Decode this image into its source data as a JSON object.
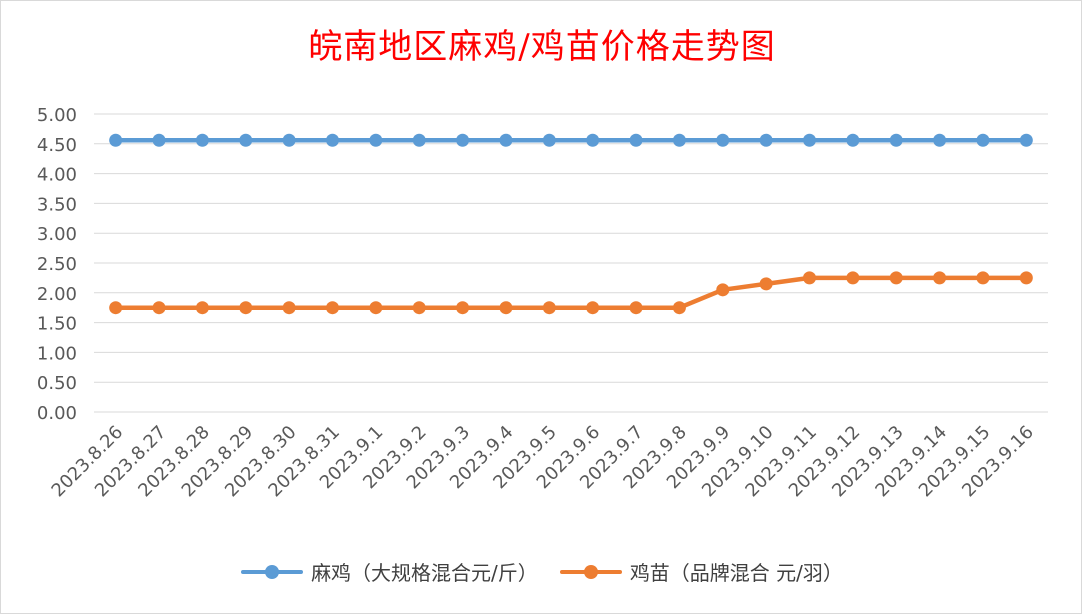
{
  "chart_data": {
    "type": "line",
    "title": "皖南地区麻鸡/鸡苗价格走势图",
    "categories": [
      "2023.8.26",
      "2023.8.27",
      "2023.8.28",
      "2023.8.29",
      "2023.8.30",
      "2023.8.31",
      "2023.9.1",
      "2023.9.2",
      "2023.9.3",
      "2023.9.4",
      "2023.9.5",
      "2023.9.6",
      "2023.9.7",
      "2023.9.8",
      "2023.9.9",
      "2023.9.10",
      "2023.9.11",
      "2023.9.12",
      "2023.9.13",
      "2023.9.14",
      "2023.9.15",
      "2023.9.16"
    ],
    "series": [
      {
        "name": "麻鸡（大规格混合元/斤）",
        "color": "#5b9bd5",
        "values": [
          4.56,
          4.56,
          4.56,
          4.56,
          4.56,
          4.56,
          4.56,
          4.56,
          4.56,
          4.56,
          4.56,
          4.56,
          4.56,
          4.56,
          4.56,
          4.56,
          4.56,
          4.56,
          4.56,
          4.56,
          4.56,
          4.56
        ]
      },
      {
        "name": "鸡苗（品牌混合 元/羽）",
        "color": "#ed7d31",
        "values": [
          1.75,
          1.75,
          1.75,
          1.75,
          1.75,
          1.75,
          1.75,
          1.75,
          1.75,
          1.75,
          1.75,
          1.75,
          1.75,
          1.75,
          2.05,
          2.15,
          2.25,
          2.25,
          2.25,
          2.25,
          2.25,
          2.25
        ]
      }
    ],
    "y_ticks": [
      "0.00",
      "0.50",
      "1.00",
      "1.50",
      "2.00",
      "2.50",
      "3.00",
      "3.50",
      "4.00",
      "4.50",
      "5.00"
    ],
    "ylim": [
      0,
      5
    ],
    "grid": true,
    "legend_position": "bottom",
    "title_color": "#ff0000"
  }
}
